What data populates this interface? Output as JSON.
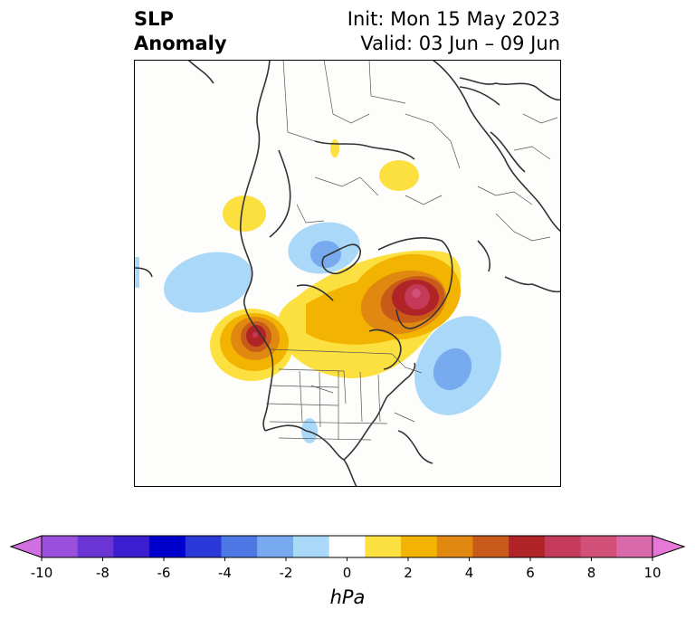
{
  "title_left": [
    "SLP",
    "Anomaly"
  ],
  "title_right": [
    "Init: Mon 15 May 2023",
    "Valid: 03 Jun – 09 Jun"
  ],
  "colorbar": {
    "unit": "hPa",
    "ticks": [
      "-10",
      "-8",
      "-6",
      "-4",
      "-2",
      "0",
      "2",
      "4",
      "6",
      "8",
      "10"
    ],
    "colors": [
      "#d070e0",
      "#9a50dc",
      "#6a35d4",
      "#3a1ed0",
      "#0000cc",
      "#2a3ad8",
      "#4d78e4",
      "#78aaef",
      "#aad8f8",
      "#ffffff",
      "#fce040",
      "#f2b400",
      "#e08810",
      "#c85a1a",
      "#b02428",
      "#c43a58",
      "#d05078",
      "#d868a8",
      "#e878d8"
    ]
  }
}
